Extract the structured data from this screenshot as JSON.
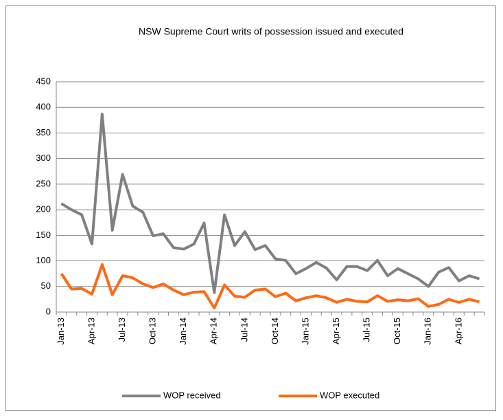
{
  "chart_data": {
    "type": "line",
    "title": "NSW Supreme Court writs of possession issued and executed",
    "categories": [
      "Jan-13",
      null,
      null,
      "Apr-13",
      null,
      null,
      "Jul-13",
      null,
      null,
      "Oct-13",
      null,
      null,
      "Jan-14",
      null,
      null,
      "Apr-14",
      null,
      null,
      "Jul-14",
      null,
      null,
      "Oct-14",
      null,
      null,
      "Jan-15",
      null,
      null,
      "Apr-15",
      null,
      null,
      "Jul-15",
      null,
      null,
      "Oct-15",
      null,
      null,
      "Jan-16",
      null,
      null,
      "Apr-16",
      null,
      null
    ],
    "series": [
      {
        "name": "WOP received",
        "color": "#808080",
        "values": [
          212,
          200,
          190,
          133,
          387,
          160,
          269,
          207,
          195,
          149,
          153,
          126,
          123,
          133,
          174,
          38,
          190,
          130,
          157,
          122,
          130,
          104,
          101,
          75,
          85,
          97,
          86,
          63,
          89,
          89,
          81,
          101,
          71,
          85,
          75,
          65,
          50,
          78,
          87,
          61,
          71,
          65
        ]
      },
      {
        "name": "WOP executed",
        "color": "#ff6a13",
        "values": [
          75,
          45,
          46,
          35,
          93,
          34,
          71,
          67,
          55,
          48,
          55,
          43,
          34,
          39,
          40,
          8,
          53,
          31,
          29,
          43,
          45,
          30,
          37,
          22,
          28,
          32,
          28,
          19,
          25,
          21,
          20,
          32,
          21,
          24,
          22,
          26,
          11,
          15,
          25,
          19,
          25,
          20
        ]
      }
    ],
    "ylim": [
      0,
      450
    ],
    "yticks": [
      0,
      50,
      100,
      150,
      200,
      250,
      300,
      350,
      400,
      450
    ],
    "grid": true,
    "legend": "bottom"
  }
}
